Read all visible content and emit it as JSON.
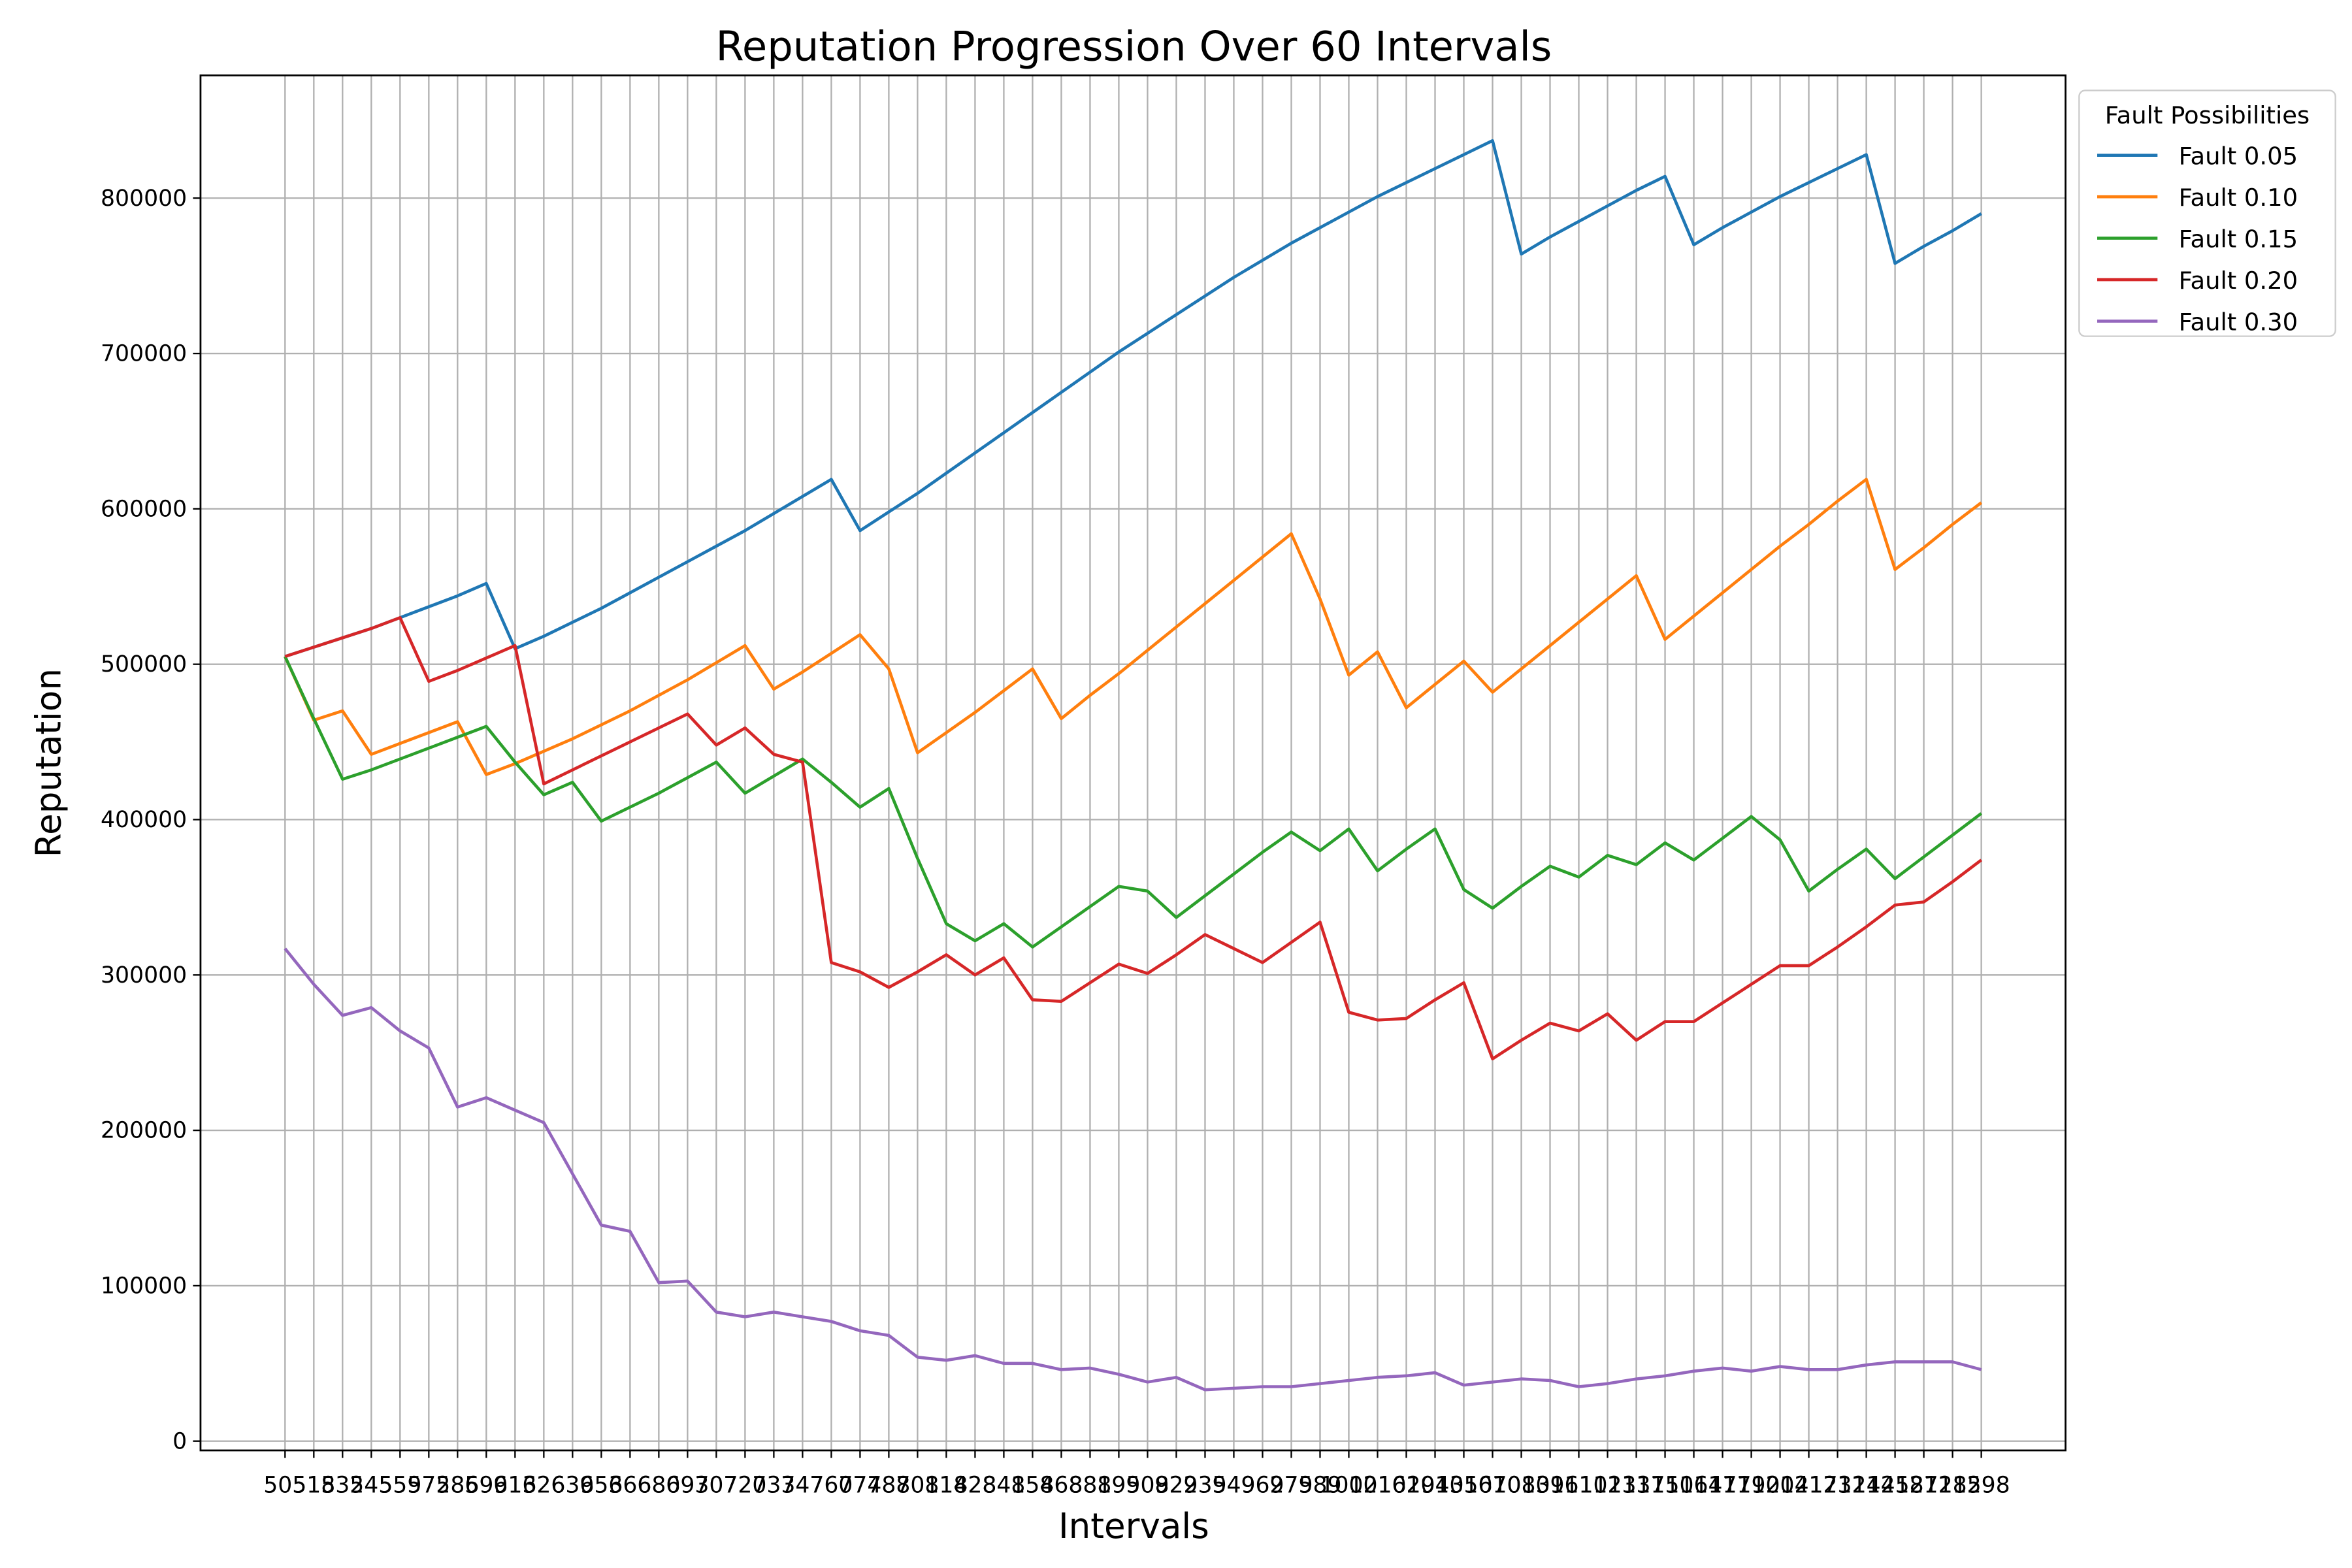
{
  "chart_data": {
    "type": "line",
    "title": "Reputation Progression Over 60 Intervals",
    "x_label": "Intervals",
    "y_label": "Reputation",
    "legend_title": "Fault Possibilities",
    "legend": "upper left outside",
    "grid": true,
    "categories": [
      "505",
      "518",
      "532",
      "545",
      "559",
      "572",
      "586",
      "599",
      "613",
      "626",
      "639",
      "653",
      "666",
      "680",
      "693",
      "707",
      "720",
      "733",
      "747",
      "760",
      "774",
      "787",
      "801",
      "814",
      "828",
      "841",
      "854",
      "868",
      "881",
      "895",
      "908",
      "922",
      "935",
      "949",
      "962",
      "975",
      "989",
      "1002",
      "1016",
      "1029",
      "1043",
      "1056",
      "1070",
      "1083",
      "1096",
      "1110",
      "1123",
      "1137",
      "1150",
      "1164",
      "1177",
      "1190",
      "1204",
      "1217",
      "1231",
      "1244",
      "1258",
      "1271",
      "1285",
      "1298"
    ],
    "ylim": [
      -6000,
      879000
    ],
    "yticks": [
      0,
      100000,
      200000,
      300000,
      400000,
      500000,
      600000,
      700000,
      800000
    ],
    "series": [
      {
        "name": "Fault 0.05",
        "color": "#1f77b4",
        "values": [
          505000,
          511000,
          517000,
          523000,
          530000,
          537000,
          544000,
          552000,
          510000,
          518000,
          527000,
          536000,
          546000,
          556000,
          566000,
          576000,
          586000,
          597000,
          608000,
          619000,
          586000,
          598000,
          610000,
          623000,
          636000,
          649000,
          662000,
          675000,
          688000,
          701000,
          713000,
          725000,
          737000,
          749000,
          760000,
          771000,
          781000,
          791000,
          801000,
          810000,
          819000,
          828000,
          837000,
          764000,
          775000,
          785000,
          795000,
          805000,
          814000,
          770000,
          781000,
          791000,
          801000,
          810000,
          819000,
          828000,
          758000,
          769000,
          779000,
          790000
        ]
      },
      {
        "name": "Fault 0.10",
        "color": "#ff7f0e",
        "values": [
          505000,
          464000,
          470000,
          442000,
          449000,
          456000,
          463000,
          429000,
          436000,
          444000,
          452000,
          461000,
          470000,
          480000,
          490000,
          501000,
          512000,
          484000,
          495000,
          507000,
          519000,
          497000,
          443000,
          456000,
          469000,
          483000,
          497000,
          465000,
          480000,
          494000,
          509000,
          524000,
          539000,
          554000,
          569000,
          584000,
          542000,
          493000,
          508000,
          472000,
          487000,
          502000,
          482000,
          497000,
          512000,
          527000,
          542000,
          557000,
          516000,
          531000,
          546000,
          561000,
          576000,
          590000,
          605000,
          619000,
          561000,
          575000,
          590000,
          604000
        ]
      },
      {
        "name": "Fault 0.15",
        "color": "#2ca02c",
        "values": [
          505000,
          465000,
          426000,
          432000,
          439000,
          446000,
          453000,
          460000,
          437000,
          416000,
          424000,
          399000,
          408000,
          417000,
          427000,
          437000,
          417000,
          428000,
          439000,
          424000,
          408000,
          420000,
          375000,
          333000,
          322000,
          333000,
          318000,
          331000,
          344000,
          357000,
          354000,
          337000,
          351000,
          365000,
          379000,
          392000,
          380000,
          394000,
          367000,
          381000,
          394000,
          355000,
          343000,
          357000,
          370000,
          363000,
          377000,
          371000,
          385000,
          374000,
          388000,
          402000,
          387000,
          354000,
          368000,
          381000,
          362000,
          376000,
          390000,
          404000
        ]
      },
      {
        "name": "Fault 0.20",
        "color": "#d62728",
        "values": [
          505000,
          511000,
          517000,
          523000,
          530000,
          489000,
          496000,
          504000,
          512000,
          423000,
          432000,
          441000,
          450000,
          459000,
          468000,
          448000,
          459000,
          442000,
          437000,
          308000,
          302000,
          292000,
          302000,
          313000,
          300000,
          311000,
          284000,
          283000,
          295000,
          307000,
          301000,
          313000,
          326000,
          317000,
          308000,
          321000,
          334000,
          276000,
          271000,
          272000,
          284000,
          295000,
          246000,
          258000,
          269000,
          264000,
          275000,
          258000,
          270000,
          270000,
          282000,
          294000,
          306000,
          306000,
          318000,
          331000,
          345000,
          347000,
          360000,
          374000
        ]
      },
      {
        "name": "Fault 0.30",
        "color": "#9467bd",
        "values": [
          317000,
          294000,
          274000,
          279000,
          264000,
          253000,
          215000,
          221000,
          213000,
          205000,
          172000,
          139000,
          135000,
          102000,
          103000,
          83000,
          80000,
          83000,
          80000,
          77000,
          71000,
          68000,
          54000,
          52000,
          55000,
          50000,
          50000,
          46000,
          47000,
          43000,
          38000,
          41000,
          33000,
          34000,
          35000,
          35000,
          37000,
          39000,
          41000,
          42000,
          44000,
          36000,
          38000,
          40000,
          39000,
          35000,
          37000,
          40000,
          42000,
          45000,
          47000,
          45000,
          48000,
          46000,
          46000,
          49000,
          51000,
          51000,
          51000,
          46000
        ]
      }
    ]
  }
}
